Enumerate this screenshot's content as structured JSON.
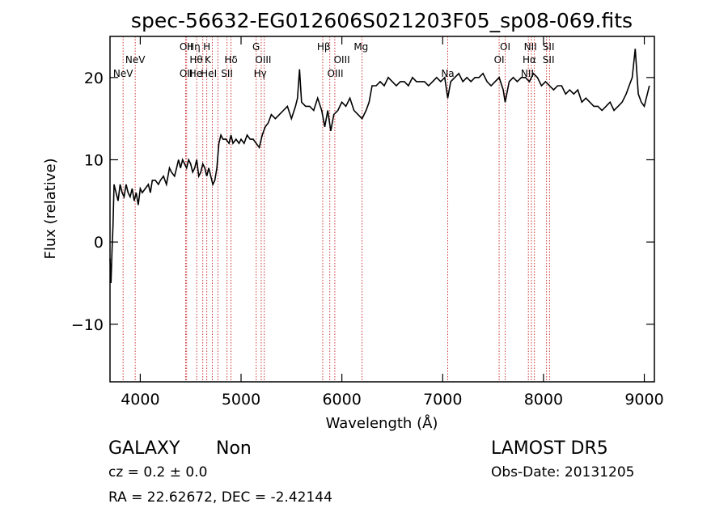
{
  "footer": {
    "object_class": "GALAXY",
    "subclass": "Non",
    "survey": "LAMOST DR5",
    "cz": "cz = 0.2 ± 0.0",
    "obs_date": "Obs-Date: 20131205",
    "ra_dec": "RA =  22.62672, DEC =  -2.42144"
  },
  "colors": {
    "spectrum": "#000000",
    "line_marker": "#cc3333"
  },
  "chart_data": {
    "type": "line",
    "title": "spec-56632-EG012606S021203F05_sp08-069.fits",
    "xlabel": "Wavelength (Å)",
    "ylabel": "Flux (relative)",
    "xlim": [
      3700,
      9100
    ],
    "ylim": [
      -17,
      25
    ],
    "xticks": [
      4000,
      5000,
      6000,
      7000,
      8000,
      9000
    ],
    "yticks": [
      -10,
      0,
      10,
      20
    ],
    "grid": false,
    "series": [
      {
        "values": [
          [
            3700,
            -2
          ],
          [
            3710,
            -5
          ],
          [
            3720,
            -1
          ],
          [
            3730,
            2
          ],
          [
            3740,
            7
          ],
          [
            3760,
            6
          ],
          [
            3780,
            5
          ],
          [
            3800,
            7
          ],
          [
            3820,
            6
          ],
          [
            3840,
            5.5
          ],
          [
            3860,
            7
          ],
          [
            3880,
            6
          ],
          [
            3900,
            5.5
          ],
          [
            3920,
            6.5
          ],
          [
            3940,
            5
          ],
          [
            3960,
            6
          ],
          [
            3980,
            4.5
          ],
          [
            4000,
            6.5
          ],
          [
            4020,
            6
          ],
          [
            4050,
            6.5
          ],
          [
            4080,
            7
          ],
          [
            4100,
            6
          ],
          [
            4120,
            7.5
          ],
          [
            4150,
            7.5
          ],
          [
            4180,
            7
          ],
          [
            4200,
            7.5
          ],
          [
            4230,
            8
          ],
          [
            4260,
            7
          ],
          [
            4290,
            9
          ],
          [
            4310,
            8.5
          ],
          [
            4340,
            8
          ],
          [
            4360,
            9
          ],
          [
            4380,
            10
          ],
          [
            4400,
            9
          ],
          [
            4420,
            10
          ],
          [
            4440,
            9.5
          ],
          [
            4460,
            9
          ],
          [
            4480,
            10
          ],
          [
            4500,
            9.5
          ],
          [
            4520,
            8.5
          ],
          [
            4540,
            9
          ],
          [
            4560,
            10
          ],
          [
            4580,
            8
          ],
          [
            4600,
            8.5
          ],
          [
            4620,
            9.5
          ],
          [
            4640,
            9
          ],
          [
            4660,
            8
          ],
          [
            4680,
            9
          ],
          [
            4700,
            8
          ],
          [
            4720,
            7
          ],
          [
            4740,
            7.5
          ],
          [
            4760,
            9
          ],
          [
            4780,
            12
          ],
          [
            4800,
            13
          ],
          [
            4820,
            12.5
          ],
          [
            4850,
            12.5
          ],
          [
            4880,
            12
          ],
          [
            4900,
            13
          ],
          [
            4920,
            12
          ],
          [
            4950,
            12.5
          ],
          [
            4980,
            12
          ],
          [
            5000,
            12.5
          ],
          [
            5030,
            12
          ],
          [
            5060,
            13
          ],
          [
            5090,
            12.5
          ],
          [
            5120,
            12.5
          ],
          [
            5150,
            12
          ],
          [
            5180,
            11.5
          ],
          [
            5210,
            13
          ],
          [
            5240,
            14
          ],
          [
            5270,
            14.5
          ],
          [
            5300,
            15.5
          ],
          [
            5340,
            15
          ],
          [
            5380,
            15.5
          ],
          [
            5420,
            16
          ],
          [
            5460,
            16.5
          ],
          [
            5500,
            15
          ],
          [
            5540,
            16.5
          ],
          [
            5560,
            17.5
          ],
          [
            5580,
            21
          ],
          [
            5600,
            17
          ],
          [
            5640,
            16.5
          ],
          [
            5680,
            16.5
          ],
          [
            5720,
            16
          ],
          [
            5760,
            17.5
          ],
          [
            5800,
            16
          ],
          [
            5830,
            14
          ],
          [
            5860,
            16
          ],
          [
            5890,
            13.5
          ],
          [
            5920,
            15.5
          ],
          [
            5960,
            16
          ],
          [
            6000,
            17
          ],
          [
            6040,
            16.5
          ],
          [
            6080,
            17.5
          ],
          [
            6120,
            16
          ],
          [
            6160,
            15.5
          ],
          [
            6200,
            15
          ],
          [
            6240,
            16
          ],
          [
            6270,
            17
          ],
          [
            6300,
            19
          ],
          [
            6340,
            19
          ],
          [
            6380,
            19.5
          ],
          [
            6420,
            19
          ],
          [
            6460,
            20
          ],
          [
            6500,
            19.5
          ],
          [
            6540,
            19
          ],
          [
            6580,
            19.5
          ],
          [
            6620,
            19.5
          ],
          [
            6660,
            19
          ],
          [
            6700,
            20
          ],
          [
            6740,
            19.5
          ],
          [
            6780,
            19.5
          ],
          [
            6820,
            19.5
          ],
          [
            6860,
            19
          ],
          [
            6900,
            19.5
          ],
          [
            6940,
            20
          ],
          [
            6980,
            19.5
          ],
          [
            7020,
            20
          ],
          [
            7050,
            17.5
          ],
          [
            7080,
            19.5
          ],
          [
            7120,
            20
          ],
          [
            7160,
            20.5
          ],
          [
            7200,
            19.5
          ],
          [
            7240,
            20
          ],
          [
            7280,
            19.5
          ],
          [
            7320,
            20
          ],
          [
            7360,
            20
          ],
          [
            7400,
            20.5
          ],
          [
            7440,
            19.5
          ],
          [
            7480,
            19
          ],
          [
            7520,
            19.5
          ],
          [
            7560,
            20
          ],
          [
            7600,
            18.5
          ],
          [
            7620,
            17
          ],
          [
            7660,
            19.5
          ],
          [
            7700,
            20
          ],
          [
            7740,
            19.5
          ],
          [
            7780,
            20
          ],
          [
            7820,
            20
          ],
          [
            7860,
            19.5
          ],
          [
            7900,
            20.5
          ],
          [
            7940,
            20
          ],
          [
            7980,
            19
          ],
          [
            8020,
            19.5
          ],
          [
            8060,
            19
          ],
          [
            8100,
            18.5
          ],
          [
            8140,
            19
          ],
          [
            8180,
            19
          ],
          [
            8220,
            18
          ],
          [
            8260,
            18.5
          ],
          [
            8300,
            18
          ],
          [
            8340,
            18.5
          ],
          [
            8380,
            17
          ],
          [
            8420,
            17.5
          ],
          [
            8460,
            17
          ],
          [
            8500,
            16.5
          ],
          [
            8540,
            16.5
          ],
          [
            8580,
            16
          ],
          [
            8620,
            16.5
          ],
          [
            8660,
            17
          ],
          [
            8700,
            16
          ],
          [
            8740,
            16.5
          ],
          [
            8780,
            17
          ],
          [
            8820,
            18
          ],
          [
            8850,
            19
          ],
          [
            8880,
            20
          ],
          [
            8910,
            23.5
          ],
          [
            8940,
            18
          ],
          [
            8970,
            17
          ],
          [
            9000,
            16.5
          ],
          [
            9030,
            18
          ],
          [
            9050,
            19
          ]
        ]
      }
    ],
    "lines": [
      {
        "label": "NeV",
        "wavelength": 3830,
        "row": 3
      },
      {
        "label": "NeV",
        "wavelength": 3950,
        "row": 2
      },
      {
        "label": "OII",
        "wavelength": 4455,
        "row": 1
      },
      {
        "label": "OII",
        "wavelength": 4455,
        "row": 3
      },
      {
        "label": "Hη",
        "wavelength": 4530,
        "row": 1
      },
      {
        "label": "Hθ",
        "wavelength": 4555,
        "row": 2
      },
      {
        "label": "He",
        "wavelength": 4550,
        "row": 3
      },
      {
        "label": "H",
        "wavelength": 4660,
        "row": 1
      },
      {
        "label": "K",
        "wavelength": 4670,
        "row": 2
      },
      {
        "label": "HeI",
        "wavelength": 4680,
        "row": 3
      },
      {
        "label": "Hδ",
        "wavelength": 4900,
        "row": 2
      },
      {
        "label": "SII",
        "wavelength": 4860,
        "row": 3
      },
      {
        "label": "G",
        "wavelength": 5150,
        "row": 1
      },
      {
        "label": "OIII",
        "wavelength": 5220,
        "row": 2
      },
      {
        "label": "Hγ",
        "wavelength": 5190,
        "row": 3
      },
      {
        "label": "Hβ",
        "wavelength": 5820,
        "row": 1
      },
      {
        "label": "OIII",
        "wavelength": 6000,
        "row": 2
      },
      {
        "label": "OIII",
        "wavelength": 5935,
        "row": 3
      },
      {
        "label": "Mg",
        "wavelength": 6190,
        "row": 1
      },
      {
        "label": "Na",
        "wavelength": 7050,
        "row": 3
      },
      {
        "label": "OI",
        "wavelength": 7620,
        "row": 1
      },
      {
        "label": "OI",
        "wavelength": 7560,
        "row": 2
      },
      {
        "label": "NII",
        "wavelength": 7870,
        "row": 1
      },
      {
        "label": "Hα",
        "wavelength": 7860,
        "row": 2
      },
      {
        "label": "NII",
        "wavelength": 7840,
        "row": 3
      },
      {
        "label": "SII",
        "wavelength": 8050,
        "row": 1
      },
      {
        "label": "SII",
        "wavelength": 8050,
        "row": 2
      }
    ],
    "line_markers": [
      3830,
      3950,
      4450,
      4460,
      4560,
      4620,
      4660,
      4715,
      4770,
      4860,
      4900,
      5150,
      5200,
      5230,
      5810,
      5880,
      5930,
      6200,
      7050,
      7560,
      7620,
      7850,
      7880,
      7910,
      8030,
      8060
    ]
  }
}
